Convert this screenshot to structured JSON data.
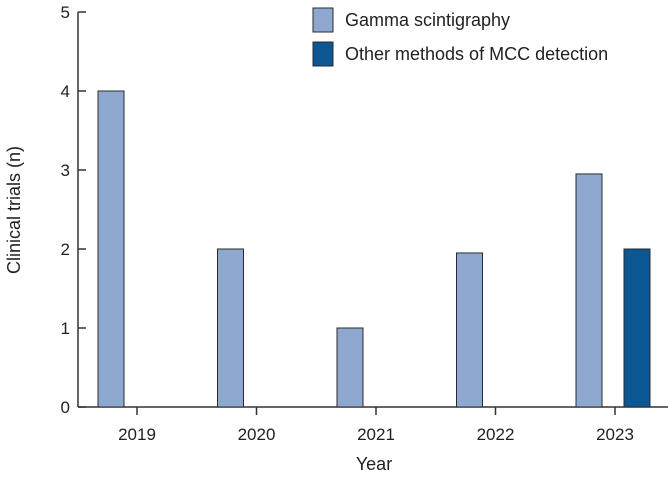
{
  "chart_data": {
    "type": "bar",
    "categories": [
      "2019",
      "2020",
      "2021",
      "2022",
      "2023"
    ],
    "series": [
      {
        "name": "Gamma scintigraphy",
        "values": [
          4,
          2,
          1,
          1.95,
          2.95
        ],
        "color": "#8fa8d0"
      },
      {
        "name": "Other methods of MCC detection",
        "values": [
          0,
          0,
          0,
          0,
          2
        ],
        "color": "#0d5694"
      }
    ],
    "xlabel": "Year",
    "ylabel": "Clinical trials (n)",
    "ylim": [
      0,
      5
    ],
    "yticks": [
      "0",
      "1",
      "2",
      "3",
      "4",
      "5"
    ],
    "grid": false,
    "legend_position": "top-right"
  }
}
